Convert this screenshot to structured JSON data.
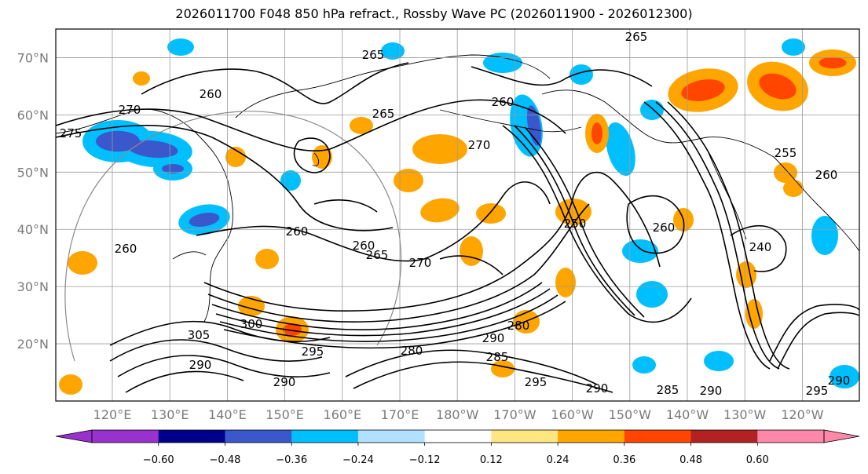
{
  "title": "2026011700 F048 850 hPa refract., Rossby Wave PC (2026011900 - 2026012300)",
  "map": {
    "lat_labels": [
      "70°N",
      "60°N",
      "50°N",
      "40°N",
      "30°N",
      "20°N"
    ],
    "lat_values": [
      70,
      60,
      50,
      40,
      30,
      20
    ],
    "lon_labels": [
      "120°E",
      "130°E",
      "140°E",
      "150°E",
      "160°E",
      "170°E",
      "180°W",
      "170°W",
      "160°W",
      "150°W",
      "140°W",
      "130°W",
      "120°W"
    ],
    "lat_range": [
      10,
      75
    ],
    "contour_labels": [
      "265",
      "265",
      "260",
      "270",
      "275",
      "260",
      "265",
      "270",
      "260",
      "260",
      "260",
      "265",
      "270",
      "300",
      "305",
      "290",
      "295",
      "290",
      "280",
      "290",
      "295",
      "290",
      "285",
      "290",
      "295",
      "290",
      "250",
      "255",
      "260",
      "240",
      "260",
      "285",
      "280"
    ]
  },
  "colorbar": {
    "colors": [
      "#9932cc",
      "#00008b",
      "#3a58cc",
      "#00bfff",
      "#b0e2ff",
      "#ffffff",
      "#ffe680",
      "#ffa500",
      "#ff4500",
      "#b22222",
      "#ff88aa"
    ],
    "tick_labels": [
      "−0.60",
      "−0.48",
      "−0.36",
      "−0.24",
      "−0.12",
      "0.12",
      "0.24",
      "0.36",
      "0.48",
      "0.60"
    ]
  }
}
